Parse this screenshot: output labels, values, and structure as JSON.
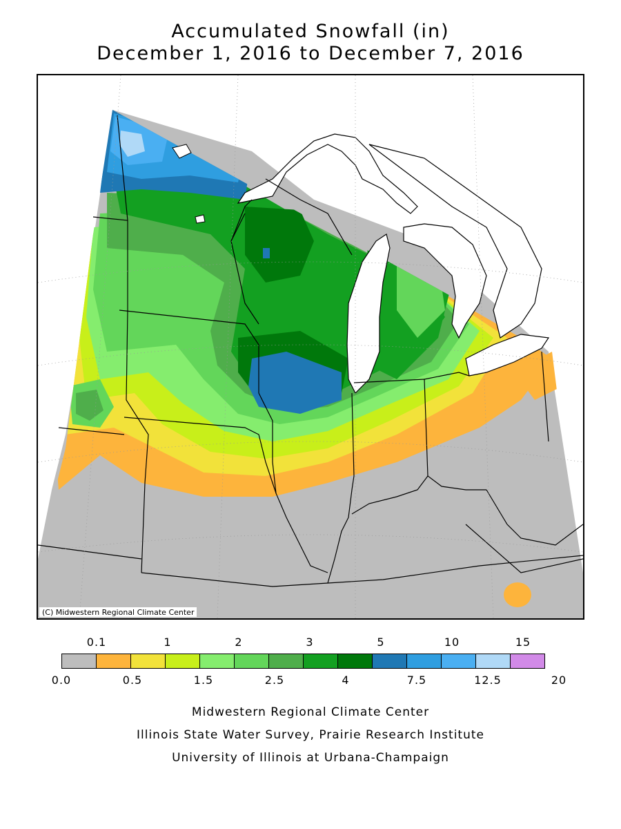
{
  "title": {
    "line1": "Accumulated Snowfall (in)",
    "line2": "December 1, 2016 to December 7, 2016"
  },
  "map": {
    "copyright": "(C) Midwestern Regional Climate Center",
    "colors": {
      "none": "#bdbdbd",
      "c01": "#fdb43c",
      "c05": "#f2e23a",
      "c1": "#c8ef1a",
      "c15": "#85ed6e",
      "c2": "#63d65a",
      "c25": "#4fae4b",
      "c3": "#13a021",
      "c4": "#00780b",
      "c5": "#1f78b4",
      "c75": "#2f9ee0",
      "c10": "#4aaff2",
      "c125": "#b0d9f7"
    }
  },
  "legend": {
    "top_labels": [
      "0.1",
      "1",
      "2",
      "3",
      "5",
      "10",
      "15"
    ],
    "bottom_labels": [
      "0.0",
      "0.5",
      "1.5",
      "2.5",
      "4",
      "7.5",
      "12.5",
      "20"
    ],
    "colors": [
      "#bdbdbd",
      "#fdb43c",
      "#f2e23a",
      "#c8ef1a",
      "#85ed6e",
      "#63d65a",
      "#4fae4b",
      "#13a021",
      "#00780b",
      "#1f78b4",
      "#2f9ee0",
      "#4aaff2",
      "#b0d9f7",
      "#d28ae8"
    ]
  },
  "footer": {
    "line1": "Midwestern Regional Climate Center",
    "line2": "Illinois State Water Survey, Prairie Research Institute",
    "line3": "University of Illinois at Urbana-Champaign"
  }
}
